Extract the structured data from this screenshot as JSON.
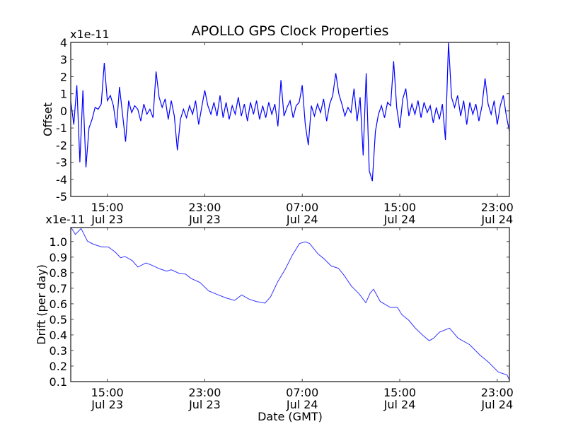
{
  "chart_data": [
    {
      "type": "line",
      "title": "APOLLO GPS Clock Properties",
      "xlabel": "",
      "ylabel": "Offset",
      "offset_text": "x1e-11",
      "color": "#0000ff",
      "ylim": [
        -5,
        4
      ],
      "yticks": [
        -5,
        -4,
        -3,
        -2,
        -1,
        0,
        1,
        2,
        3,
        4
      ],
      "ytick_labels": [
        "-5",
        "-4",
        "-3",
        "-2",
        "-1",
        "0",
        "1",
        "2",
        "3",
        "4"
      ],
      "xlim_hours_from_jul23_0000": [
        12,
        48
      ],
      "xticks_hours": [
        15,
        23,
        31,
        39,
        47
      ],
      "xtick_labels": [
        [
          "15:00",
          "Jul 23"
        ],
        [
          "23:00",
          "Jul 23"
        ],
        [
          "07:00",
          "Jul 24"
        ],
        [
          "15:00",
          "Jul 24"
        ],
        [
          "23:00",
          "Jul 24"
        ]
      ],
      "x_start_hour": 12,
      "x_step_hours": 0.25,
      "values": [
        0.6,
        -0.8,
        1.5,
        -3.0,
        1.2,
        -3.3,
        -1.0,
        -0.5,
        0.2,
        0.1,
        0.4,
        2.8,
        0.6,
        0.9,
        0.3,
        -1.0,
        1.4,
        -0.2,
        -1.8,
        0.6,
        -0.1,
        0.3,
        0.1,
        -0.6,
        0.4,
        -0.2,
        0.1,
        -0.4,
        2.3,
        0.8,
        0.2,
        0.7,
        -0.5,
        0.6,
        -0.3,
        -2.3,
        -0.5,
        0.1,
        -0.4,
        0.3,
        -0.2,
        0.6,
        -0.8,
        0.2,
        1.2,
        0.3,
        -0.2,
        0.5,
        -0.3,
        0.9,
        -0.4,
        0.5,
        -0.5,
        0.3,
        -0.2,
        0.8,
        -0.3,
        0.4,
        -0.6,
        0.5,
        -0.2,
        0.6,
        -0.5,
        0.3,
        -0.4,
        0.5,
        -0.2,
        0.4,
        -0.9,
        1.8,
        -0.3,
        0.2,
        0.6,
        -0.4,
        0.3,
        0.5,
        1.5,
        -0.8,
        -2.0,
        0.3,
        -0.3,
        0.4,
        -0.1,
        0.7,
        -0.6,
        0.4,
        0.9,
        2.2,
        1.0,
        0.4,
        -0.3,
        0.2,
        -0.1,
        1.3,
        -0.6,
        0.8,
        -2.6,
        2.2,
        -3.5,
        -4.1,
        -1.2,
        -0.2,
        0.3,
        -0.4,
        0.5,
        0.3,
        2.9,
        0.2,
        -1.0,
        0.7,
        1.3,
        -0.3,
        0.4,
        -0.2,
        0.6,
        -0.4,
        0.5,
        -0.1,
        0.3,
        -0.7,
        0.2,
        -0.5,
        0.4,
        -1.7,
        4.0,
        0.8,
        0.2,
        0.9,
        -0.3,
        0.6,
        -0.8,
        0.5,
        -0.2,
        0.4,
        -0.6,
        0.3,
        1.9,
        0.4,
        -0.2,
        0.6,
        -0.8,
        0.3,
        0.9,
        -0.3,
        -1.2
      ]
    },
    {
      "type": "line",
      "title": "",
      "xlabel": "Date (GMT)",
      "ylabel": "Drift (per day)",
      "offset_text": "x1e-11",
      "color": "#0000ff",
      "ylim": [
        0.1,
        1.09
      ],
      "yticks": [
        0.1,
        0.2,
        0.3,
        0.4,
        0.5,
        0.6,
        0.7,
        0.8,
        0.9,
        1.0
      ],
      "ytick_labels": [
        "0.1",
        "0.2",
        "0.3",
        "0.4",
        "0.5",
        "0.6",
        "0.7",
        "0.8",
        "0.9",
        "1.0"
      ],
      "xlim_hours_from_jul23_0000": [
        12,
        48
      ],
      "xticks_hours": [
        15,
        23,
        31,
        39,
        47
      ],
      "xtick_labels": [
        [
          "15:00",
          "Jul 23"
        ],
        [
          "23:00",
          "Jul 23"
        ],
        [
          "07:00",
          "Jul 24"
        ],
        [
          "15:00",
          "Jul 24"
        ],
        [
          "23:00",
          "Jul 24"
        ]
      ],
      "x": [
        12,
        12.38,
        12.85,
        13.37,
        13.85,
        14.56,
        15.08,
        15.62,
        16.09,
        16.45,
        17.04,
        17.51,
        18.18,
        18.7,
        19.29,
        19.88,
        20.24,
        20.95,
        21.42,
        21.89,
        22.6,
        23.31,
        24.02,
        24.73,
        25.44,
        26.03,
        26.63,
        27.22,
        27.93,
        28.4,
        29.0,
        29.59,
        30.18,
        30.78,
        31.24,
        31.6,
        32.31,
        32.79,
        33.38,
        33.97,
        34.44,
        35.03,
        35.62,
        36.22,
        36.57,
        36.85,
        37.4,
        38.22,
        38.81,
        39.17,
        39.76,
        40.24,
        40.83,
        41.42,
        41.78,
        42.25,
        43.08,
        43.79,
        44.73,
        45.56,
        46.27,
        47.1,
        47.81,
        48.0
      ],
      "values": [
        1.094,
        1.046,
        1.084,
        1.003,
        0.983,
        0.965,
        0.965,
        0.935,
        0.896,
        0.904,
        0.878,
        0.836,
        0.863,
        0.846,
        0.825,
        0.81,
        0.819,
        0.794,
        0.791,
        0.762,
        0.737,
        0.683,
        0.66,
        0.638,
        0.622,
        0.657,
        0.63,
        0.615,
        0.604,
        0.645,
        0.744,
        0.82,
        0.912,
        0.988,
        0.998,
        0.988,
        0.919,
        0.889,
        0.843,
        0.828,
        0.782,
        0.714,
        0.668,
        0.607,
        0.668,
        0.694,
        0.615,
        0.577,
        0.577,
        0.531,
        0.493,
        0.447,
        0.402,
        0.363,
        0.379,
        0.417,
        0.444,
        0.379,
        0.338,
        0.272,
        0.226,
        0.161,
        0.143,
        0.109
      ]
    }
  ]
}
